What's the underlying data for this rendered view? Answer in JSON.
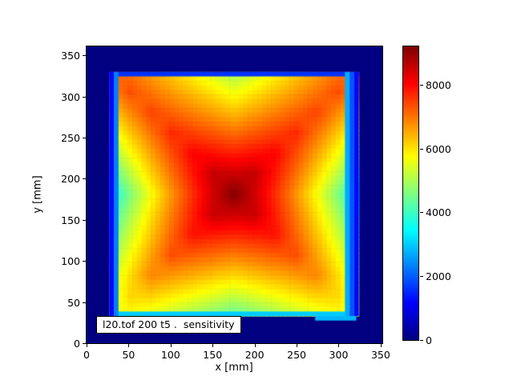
{
  "window": {
    "background": "#ffffff"
  },
  "chart_data": {
    "type": "heatmap",
    "title_annotation": "l20.tof 200 t5 .  sensitivity",
    "xlabel": "x [mm]",
    "ylabel": "y [mm]",
    "x_ticks": [
      0,
      50,
      100,
      150,
      200,
      250,
      300,
      350
    ],
    "y_ticks": [
      0,
      50,
      100,
      150,
      200,
      250,
      300,
      350
    ],
    "xlim": [
      0,
      352
    ],
    "ylim": [
      0,
      361
    ],
    "colormap": "jet",
    "vmin": 0,
    "vmax": 9200,
    "colorbar_ticks": [
      0,
      2000,
      4000,
      6000,
      8000
    ],
    "legend_position": "right-colorbar",
    "grid_on": false,
    "background_value": 0,
    "colors": {
      "background_navy": "#000080",
      "max_dark_red": "#800000",
      "border_cyan": "#00e0ff",
      "text": "#000000"
    },
    "square_x_mm": [
      27,
      324
    ],
    "square_y_mm": [
      33,
      330
    ],
    "grid_note": "13x13 sensitivity samples over the detector square, rows listed top (y=330mm) to bottom (y=33mm), columns left (x=27mm) to right (x=324mm)",
    "grid_rows_top_to_bottom": [
      [
        7400,
        6983,
        6567,
        6150,
        5733,
        5317,
        4900,
        5317,
        5733,
        6150,
        6567,
        6983,
        7400
      ],
      [
        6733,
        7355,
        7008,
        6661,
        6313,
        5966,
        5619,
        5966,
        6313,
        6661,
        7008,
        7355,
        6733
      ],
      [
        6067,
        6802,
        7452,
        7174,
        6896,
        6619,
        6341,
        6619,
        6896,
        7174,
        7452,
        6802,
        6067
      ],
      [
        5400,
        6248,
        7011,
        7688,
        7480,
        7271,
        7063,
        7271,
        7480,
        7688,
        7011,
        6248,
        5400
      ],
      [
        4733,
        5695,
        6571,
        7358,
        8059,
        7920,
        7781,
        7920,
        8059,
        7358,
        6571,
        5695,
        4733
      ],
      [
        4067,
        5142,
        6130,
        7029,
        7841,
        8564,
        8495,
        8564,
        7841,
        7029,
        6130,
        5142,
        4067
      ],
      [
        3400,
        4589,
        5689,
        6700,
        7622,
        8455,
        9200,
        8455,
        7622,
        6700,
        5689,
        4589,
        3400
      ],
      [
        3833,
        4953,
        5981,
        6921,
        7771,
        8530,
        8483,
        8530,
        7771,
        6921,
        5981,
        4953,
        3833
      ],
      [
        4267,
        5316,
        6274,
        7142,
        7919,
        7825,
        7730,
        7825,
        7919,
        7142,
        6274,
        5316,
        4267
      ],
      [
        4700,
        5679,
        6566,
        7363,
        7221,
        7080,
        6938,
        7080,
        7221,
        7363,
        6566,
        5679,
        4700
      ],
      [
        5133,
        6043,
        6859,
        6670,
        6481,
        6292,
        6103,
        6292,
        6481,
        6670,
        6859,
        6043,
        5133
      ],
      [
        5200,
        6100,
        6170,
        5934,
        5698,
        5462,
        5225,
        5462,
        5698,
        5934,
        6170,
        6100,
        5200
      ],
      [
        5600,
        5717,
        5433,
        5150,
        4867,
        4583,
        4300,
        4583,
        4867,
        5150,
        5433,
        5717,
        5600
      ]
    ],
    "edge_falloff_mm": 5.5,
    "edge_falloff": {
      "left_cols_outer_to_inner": [
        1200,
        2300
      ],
      "right_cols_outer_to_inner": [
        1200,
        1900,
        2700
      ],
      "top_rows_outer_to_inner": [
        1600
      ],
      "bottom_rows_outer_to_inner": [
        3000
      ],
      "bottom_right_step": {
        "x_mm": [
          272,
          321
        ],
        "y_mm": [
          27.5,
          33
        ],
        "value": 2800
      }
    }
  }
}
